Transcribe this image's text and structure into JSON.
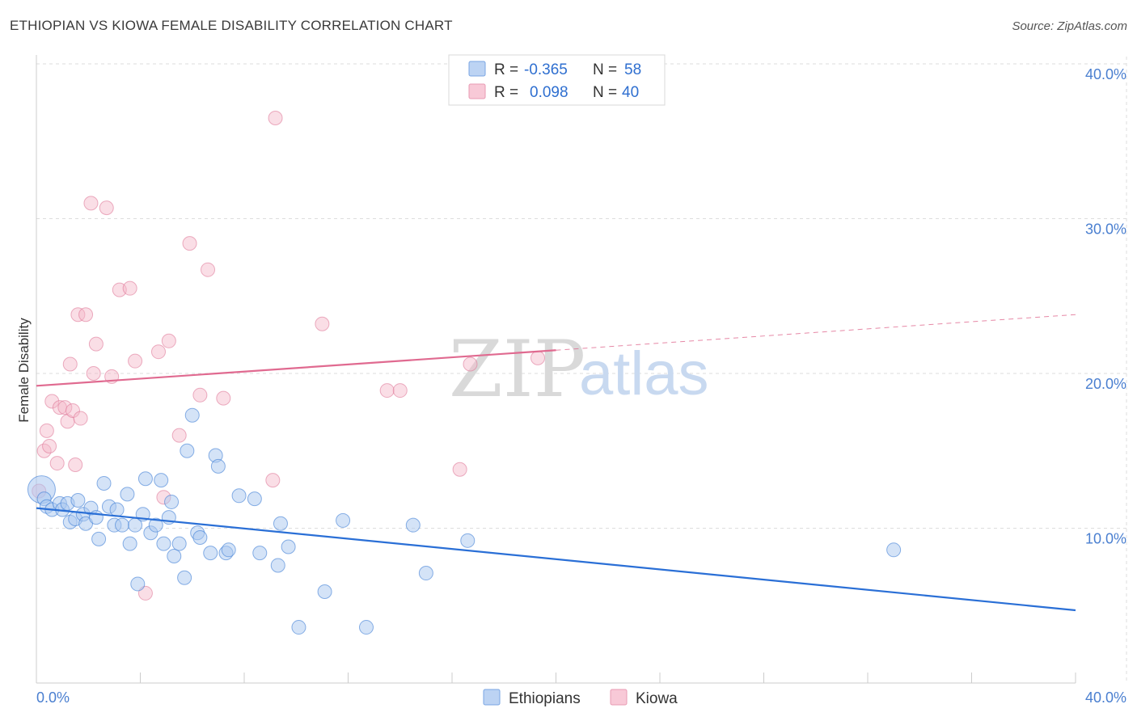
{
  "title": "ETHIOPIAN VS KIOWA FEMALE DISABILITY CORRELATION CHART",
  "source": "Source: ZipAtlas.com",
  "watermark": {
    "zip": "ZIP",
    "atlas": "atlas"
  },
  "colors": {
    "blue": "#3f7fd6",
    "blue_fill": "#a9c7f0",
    "blue_line": "#2a6fd6",
    "pink": "#e07a9a",
    "pink_fill": "#f3b5c8",
    "pink_line": "#e06a90",
    "grid": "#dddddd",
    "axis_text": "#4a7fd0"
  },
  "legend": {
    "r_label": "R =",
    "n_label": "N =",
    "series": [
      {
        "name": "Ethiopians",
        "r": "-0.365",
        "n": "58"
      },
      {
        "name": "Kiowa",
        "r": "0.098",
        "n": "40"
      }
    ]
  },
  "chart_data": {
    "type": "scatter",
    "title": "ETHIOPIAN VS KIOWA FEMALE DISABILITY CORRELATION CHART",
    "xlabel": "",
    "ylabel": "Female Disability",
    "xlim": [
      0,
      40
    ],
    "ylim": [
      0,
      40
    ],
    "x_tick_labels": [
      "0.0%",
      "40.0%"
    ],
    "y_tick_labels": [
      "10.0%",
      "20.0%",
      "30.0%",
      "40.0%"
    ],
    "y_ticks": [
      10,
      20,
      30,
      40
    ],
    "legend_position": "top-center",
    "series": [
      {
        "name": "Ethiopians",
        "r": -0.365,
        "n": 58,
        "trend": {
          "x0": 0,
          "y0": 11.3,
          "x1": 40,
          "y1": 4.7,
          "dashed_from": null
        },
        "points": [
          [
            0.2,
            12.5,
            "big"
          ],
          [
            0.3,
            11.9
          ],
          [
            0.4,
            11.4
          ],
          [
            0.6,
            11.2
          ],
          [
            0.9,
            11.6
          ],
          [
            1.0,
            11.2
          ],
          [
            1.2,
            11.6
          ],
          [
            1.3,
            10.4
          ],
          [
            1.5,
            10.6
          ],
          [
            1.6,
            11.8
          ],
          [
            1.8,
            10.9
          ],
          [
            1.9,
            10.3
          ],
          [
            2.1,
            11.3
          ],
          [
            2.3,
            10.7
          ],
          [
            2.4,
            9.3
          ],
          [
            2.6,
            12.9
          ],
          [
            2.8,
            11.4
          ],
          [
            3.0,
            10.2
          ],
          [
            3.1,
            11.2
          ],
          [
            3.3,
            10.2
          ],
          [
            3.5,
            12.2
          ],
          [
            3.6,
            9.0
          ],
          [
            3.8,
            10.2
          ],
          [
            3.9,
            6.4
          ],
          [
            4.1,
            10.9
          ],
          [
            4.2,
            13.2
          ],
          [
            4.4,
            9.7
          ],
          [
            4.6,
            10.2
          ],
          [
            4.8,
            13.1
          ],
          [
            4.9,
            9.0
          ],
          [
            5.1,
            10.7
          ],
          [
            5.2,
            11.7
          ],
          [
            5.3,
            8.2
          ],
          [
            5.5,
            9.0
          ],
          [
            5.7,
            6.8
          ],
          [
            5.8,
            15.0
          ],
          [
            6.0,
            17.3
          ],
          [
            6.2,
            9.7
          ],
          [
            6.3,
            9.4
          ],
          [
            6.7,
            8.4
          ],
          [
            6.9,
            14.7
          ],
          [
            7.0,
            14.0
          ],
          [
            7.3,
            8.4
          ],
          [
            7.4,
            8.6
          ],
          [
            7.8,
            12.1
          ],
          [
            8.4,
            11.9
          ],
          [
            8.6,
            8.4
          ],
          [
            9.3,
            7.6
          ],
          [
            9.4,
            10.3
          ],
          [
            9.7,
            8.8
          ],
          [
            10.1,
            3.6
          ],
          [
            11.1,
            5.9
          ],
          [
            11.8,
            10.5
          ],
          [
            12.7,
            3.6
          ],
          [
            14.5,
            10.2
          ],
          [
            15.0,
            7.1
          ],
          [
            16.6,
            9.2
          ],
          [
            33.0,
            8.6
          ]
        ]
      },
      {
        "name": "Kiowa",
        "r": 0.098,
        "n": 40,
        "trend": {
          "x0": 0,
          "y0": 19.2,
          "x1": 40,
          "y1": 23.8,
          "dashed_from": 20
        },
        "points": [
          [
            0.1,
            12.4
          ],
          [
            0.3,
            15.0
          ],
          [
            0.4,
            16.3
          ],
          [
            0.5,
            15.3
          ],
          [
            0.6,
            18.2
          ],
          [
            0.8,
            14.2
          ],
          [
            0.9,
            17.8
          ],
          [
            1.1,
            17.8
          ],
          [
            1.2,
            16.9
          ],
          [
            1.3,
            20.6
          ],
          [
            1.4,
            17.6
          ],
          [
            1.5,
            14.1
          ],
          [
            1.6,
            23.8
          ],
          [
            1.7,
            17.1
          ],
          [
            1.9,
            23.8
          ],
          [
            2.1,
            31.0
          ],
          [
            2.2,
            20.0
          ],
          [
            2.3,
            21.9
          ],
          [
            2.7,
            30.7
          ],
          [
            2.9,
            19.8
          ],
          [
            3.2,
            25.4
          ],
          [
            3.6,
            25.5
          ],
          [
            3.8,
            20.8
          ],
          [
            4.2,
            5.8
          ],
          [
            4.7,
            21.4
          ],
          [
            4.9,
            12.0
          ],
          [
            5.1,
            22.1
          ],
          [
            5.5,
            16.0
          ],
          [
            5.9,
            28.4
          ],
          [
            6.3,
            18.6
          ],
          [
            6.6,
            26.7
          ],
          [
            7.2,
            18.4
          ],
          [
            9.1,
            13.1
          ],
          [
            9.2,
            36.5
          ],
          [
            11.0,
            23.2
          ],
          [
            13.5,
            18.9
          ],
          [
            14.0,
            18.9
          ],
          [
            16.3,
            13.8
          ],
          [
            16.7,
            20.6
          ],
          [
            19.3,
            21.0
          ]
        ]
      }
    ]
  }
}
